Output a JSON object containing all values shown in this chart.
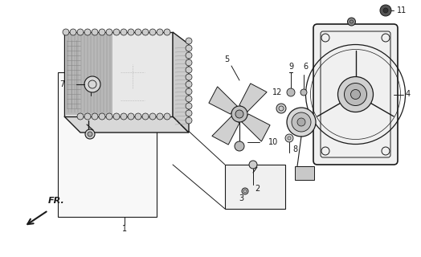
{
  "bg_color": "#ffffff",
  "line_color": "#1a1a1a",
  "gray_fill": "#e8e8e8",
  "light_gray": "#f2f2f2",
  "dark_gray": "#999999",
  "figsize": [
    5.24,
    3.2
  ],
  "dpi": 100,
  "xlim": [
    0,
    524
  ],
  "ylim": [
    0,
    320
  ]
}
